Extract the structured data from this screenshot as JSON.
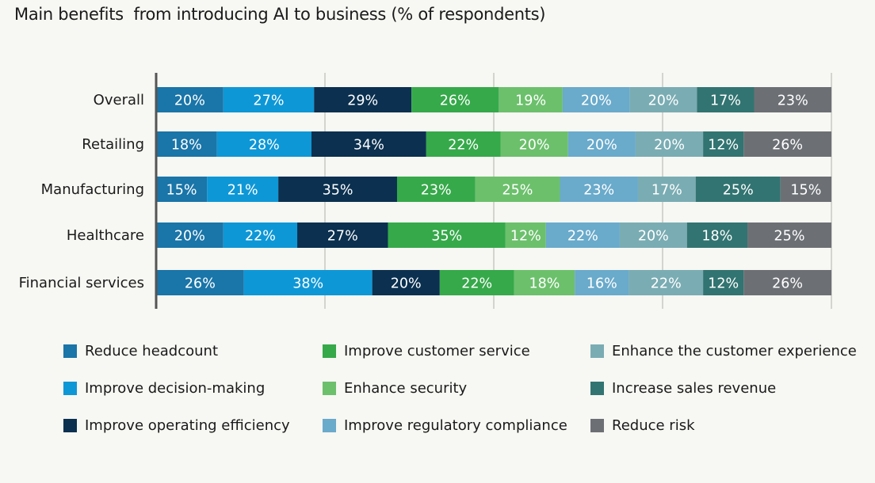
{
  "title": "Main benefits  from introducing AI to business (% of respondents)",
  "chart_data": {
    "type": "bar",
    "orientation": "horizontal",
    "stacked": true,
    "title": "Main benefits  from introducing AI to business (% of respondents)",
    "categories": [
      "Overall",
      "Retailing",
      "Manufacturing",
      "Healthcare",
      "Financial services"
    ],
    "series": [
      {
        "name": "Reduce headcount",
        "color": "#1a75a8",
        "values": [
          20,
          18,
          15,
          20,
          26
        ]
      },
      {
        "name": "Improve decision-making",
        "color": "#0e97d6",
        "values": [
          27,
          28,
          21,
          22,
          38
        ]
      },
      {
        "name": "Improve operating efficiency",
        "color": "#0b3050",
        "values": [
          29,
          34,
          35,
          27,
          20
        ]
      },
      {
        "name": "Improve customer service",
        "color": "#36a94a",
        "values": [
          26,
          22,
          23,
          35,
          22
        ]
      },
      {
        "name": "Enhance security",
        "color": "#6cc06c",
        "values": [
          19,
          20,
          25,
          12,
          18
        ]
      },
      {
        "name": "Improve regulatory compliance",
        "color": "#6aaacb",
        "values": [
          20,
          20,
          23,
          22,
          16
        ]
      },
      {
        "name": "Enhance the customer experience",
        "color": "#7aacb3",
        "values": [
          20,
          20,
          17,
          20,
          22
        ]
      },
      {
        "name": "Increase sales revenue",
        "color": "#327471",
        "values": [
          17,
          12,
          25,
          18,
          12
        ]
      },
      {
        "name": "Reduce risk",
        "color": "#6c7075",
        "values": [
          23,
          26,
          15,
          25,
          26
        ]
      }
    ],
    "value_suffix": "%",
    "grid": true,
    "legend_position": "bottom"
  }
}
